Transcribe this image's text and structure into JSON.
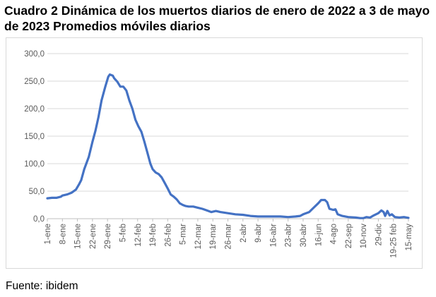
{
  "header": {
    "title": "Cuadro 2 Dinámica de los muertos diarios de enero de 2022 a 3 de mayo de 2023  Promedios móviles diarios"
  },
  "footer": {
    "source": "Fuente: ibidem"
  },
  "chart_data": {
    "type": "line",
    "title": "Cuadro 2 Dinámica de los muertos diarios de enero de 2022 a 3 de mayo de 2023  Promedios móviles diarios",
    "xlabel": "",
    "ylabel": "",
    "ylim": [
      0,
      300
    ],
    "yticks": [
      0,
      50,
      100,
      150,
      200,
      250,
      300
    ],
    "ytick_labels": [
      "0,0",
      "50,0",
      "100,0",
      "150,0",
      "200,0",
      "250,0",
      "300,0"
    ],
    "grid": true,
    "legend": "none",
    "series_color": "#4472c4",
    "x_tick_labels": [
      "1-ene",
      "8-ene",
      "15-ene",
      "22-ene",
      "29-ene",
      "5-feb",
      "12-feb",
      "19-feb",
      "26-feb",
      "5-mar",
      "12-mar",
      "19-mar",
      "26-mar",
      "2-abr",
      "9-abr",
      "16-abr",
      "23-abr",
      "30-abr",
      "16-jun",
      "4-ago",
      "22-sep",
      "10-nov",
      "29-dic",
      "19-25 feb",
      "15-may"
    ],
    "series": [
      {
        "values": [
          [
            0,
            37
          ],
          [
            0.3,
            38
          ],
          [
            0.6,
            38
          ],
          [
            0.9,
            40
          ],
          [
            1,
            42
          ],
          [
            1.3,
            44
          ],
          [
            1.6,
            47
          ],
          [
            1.9,
            53
          ],
          [
            2.1,
            62
          ],
          [
            2.25,
            70
          ],
          [
            2.45,
            90
          ],
          [
            2.75,
            112
          ],
          [
            3,
            140
          ],
          [
            3.2,
            160
          ],
          [
            3.4,
            185
          ],
          [
            3.6,
            215
          ],
          [
            3.85,
            240
          ],
          [
            4.05,
            258
          ],
          [
            4.15,
            262
          ],
          [
            4.35,
            260
          ],
          [
            4.45,
            255
          ],
          [
            4.65,
            249
          ],
          [
            4.85,
            240
          ],
          [
            5.05,
            240
          ],
          [
            5.25,
            233
          ],
          [
            5.45,
            215
          ],
          [
            5.65,
            200
          ],
          [
            5.85,
            180
          ],
          [
            6.05,
            168
          ],
          [
            6.25,
            158
          ],
          [
            6.45,
            140
          ],
          [
            6.65,
            120
          ],
          [
            6.85,
            100
          ],
          [
            7,
            90
          ],
          [
            7.2,
            84
          ],
          [
            7.4,
            81
          ],
          [
            7.6,
            75
          ],
          [
            7.8,
            65
          ],
          [
            8,
            55
          ],
          [
            8.2,
            44
          ],
          [
            8.4,
            40
          ],
          [
            8.6,
            35
          ],
          [
            8.8,
            28
          ],
          [
            9,
            25
          ],
          [
            9.2,
            23
          ],
          [
            9.4,
            22
          ],
          [
            9.7,
            22
          ],
          [
            10,
            20
          ],
          [
            10.3,
            18
          ],
          [
            10.6,
            15
          ],
          [
            10.9,
            12
          ],
          [
            11.2,
            14
          ],
          [
            11.5,
            12
          ],
          [
            12,
            10
          ],
          [
            12.5,
            8
          ],
          [
            13,
            7
          ],
          [
            13.5,
            5
          ],
          [
            14,
            4
          ],
          [
            14.5,
            4
          ],
          [
            15,
            4
          ],
          [
            15.5,
            4
          ],
          [
            16,
            3
          ],
          [
            16.5,
            4
          ],
          [
            16.8,
            5
          ],
          [
            17,
            8
          ],
          [
            17.4,
            12
          ],
          [
            17.7,
            20
          ],
          [
            18,
            28
          ],
          [
            18.2,
            34
          ],
          [
            18.45,
            34
          ],
          [
            18.6,
            30
          ],
          [
            18.75,
            18
          ],
          [
            19,
            16
          ],
          [
            19.15,
            17
          ],
          [
            19.3,
            8
          ],
          [
            19.6,
            5
          ],
          [
            20,
            3
          ],
          [
            20.5,
            2
          ],
          [
            20.8,
            1
          ],
          [
            21,
            1
          ],
          [
            21.2,
            3
          ],
          [
            21.45,
            2
          ],
          [
            21.7,
            6
          ],
          [
            22,
            10
          ],
          [
            22.2,
            15
          ],
          [
            22.35,
            12
          ],
          [
            22.45,
            5
          ],
          [
            22.6,
            14
          ],
          [
            22.75,
            6
          ],
          [
            22.9,
            8
          ],
          [
            23.1,
            3
          ],
          [
            23.4,
            2
          ],
          [
            23.7,
            3
          ],
          [
            24,
            1.5
          ]
        ]
      }
    ]
  }
}
